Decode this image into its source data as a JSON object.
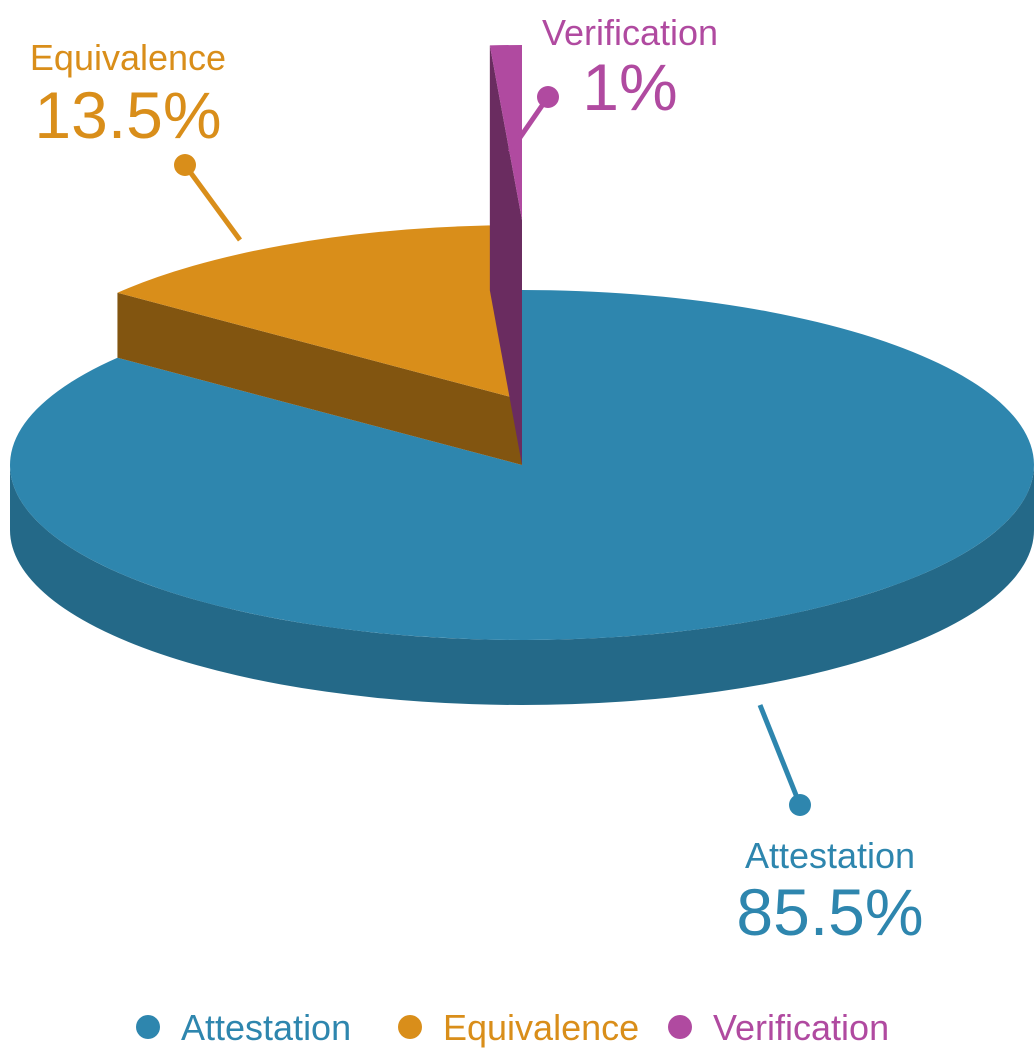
{
  "chart_data": {
    "type": "pie",
    "categories": [
      "Attestation",
      "Equivalence",
      "Verification"
    ],
    "values": [
      85.5,
      13.5,
      1
    ],
    "value_labels": [
      "85.5%",
      "13.5%",
      "1%"
    ],
    "colors": [
      "#2e86ae",
      "#d98e1a",
      "#b04aa0"
    ],
    "legend": "bottom"
  }
}
